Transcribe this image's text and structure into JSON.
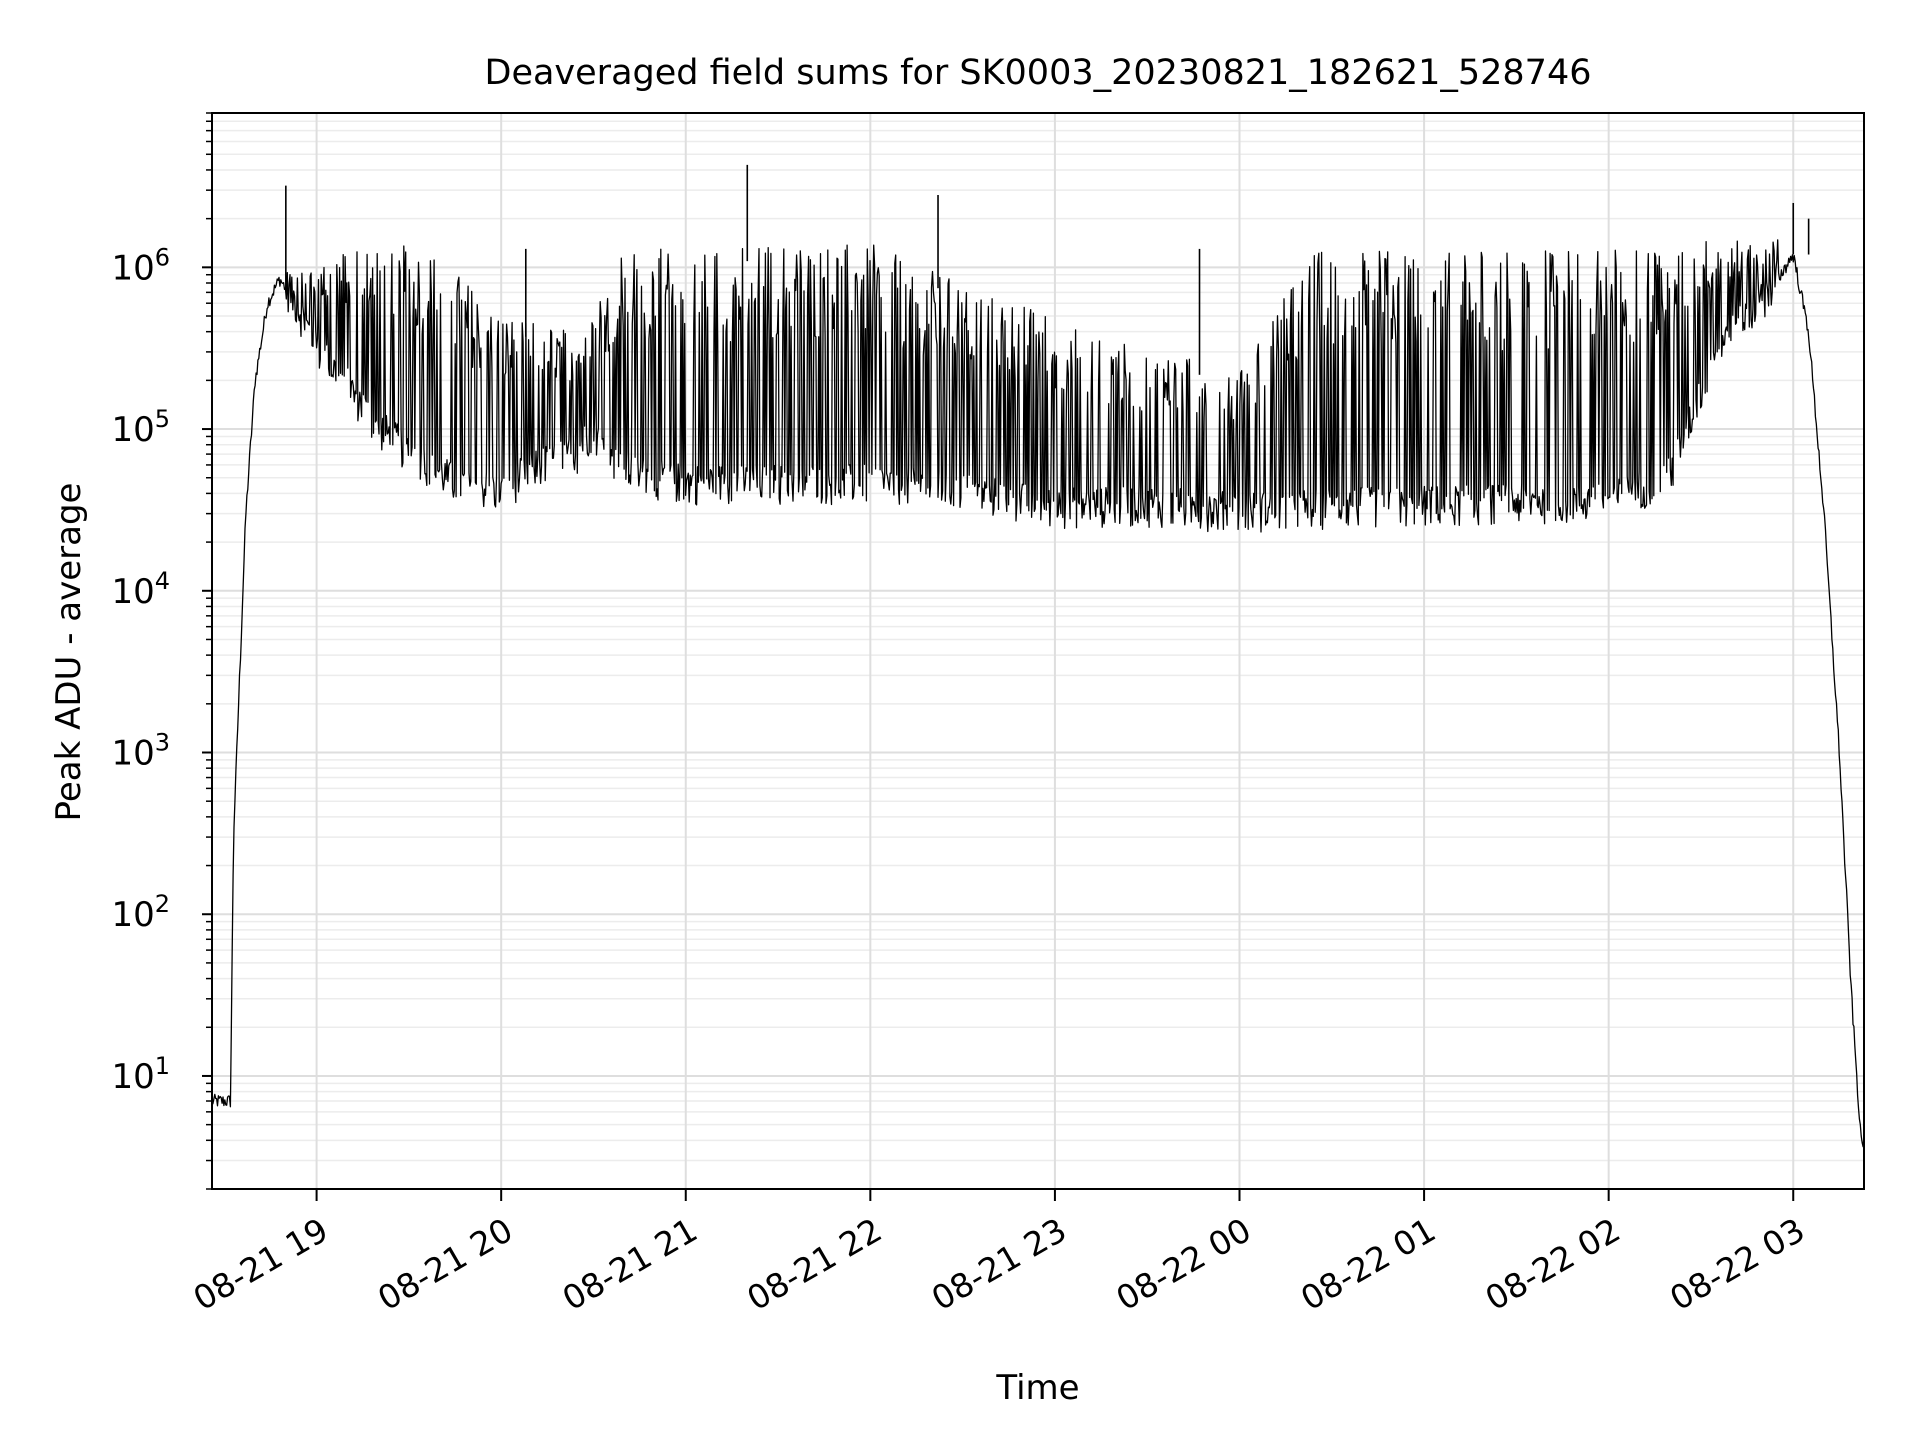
{
  "chart_data": {
    "type": "line",
    "title": "Deaveraged field sums for SK0003_20230821_182621_528746",
    "xlabel": "Time",
    "ylabel": "Peak ADU - average",
    "y_scale": "log",
    "ylim": [
      2,
      9000000
    ],
    "xlim": [
      "2023-08-21 18:26",
      "2023-08-22 03:23"
    ],
    "grid": true,
    "grid_minor": true,
    "line_color": "#000000",
    "x_ticks": [
      {
        "value": "2023-08-21 19:00",
        "label": "08-21 19"
      },
      {
        "value": "2023-08-21 20:00",
        "label": "08-21 20"
      },
      {
        "value": "2023-08-21 21:00",
        "label": "08-21 21"
      },
      {
        "value": "2023-08-21 22:00",
        "label": "08-21 22"
      },
      {
        "value": "2023-08-21 23:00",
        "label": "08-21 23"
      },
      {
        "value": "2023-08-22 00:00",
        "label": "08-22 00"
      },
      {
        "value": "2023-08-22 01:00",
        "label": "08-22 01"
      },
      {
        "value": "2023-08-22 02:00",
        "label": "08-22 02"
      },
      {
        "value": "2023-08-22 03:00",
        "label": "08-22 03"
      }
    ],
    "y_ticks": [
      {
        "value": 10,
        "base": "10",
        "exp": "1"
      },
      {
        "value": 100,
        "base": "10",
        "exp": "2"
      },
      {
        "value": 1000,
        "base": "10",
        "exp": "3"
      },
      {
        "value": 10000,
        "base": "10",
        "exp": "4"
      },
      {
        "value": 100000,
        "base": "10",
        "exp": "5"
      },
      {
        "value": 1000000,
        "base": "10",
        "exp": "6"
      }
    ],
    "baseline": [
      {
        "t": "2023-08-21 18:26",
        "v": 7
      },
      {
        "t": "2023-08-21 18:32",
        "v": 7
      },
      {
        "t": "2023-08-21 18:33",
        "v": 300
      },
      {
        "t": "2023-08-21 18:35",
        "v": 3000
      },
      {
        "t": "2023-08-21 18:37",
        "v": 30000
      },
      {
        "t": "2023-08-21 18:40",
        "v": 200000
      },
      {
        "t": "2023-08-21 18:44",
        "v": 600000
      },
      {
        "t": "2023-08-21 18:48",
        "v": 850000
      },
      {
        "t": "2023-08-21 18:53",
        "v": 600000
      },
      {
        "t": "2023-08-21 19:00",
        "v": 300000
      },
      {
        "t": "2023-08-21 19:10",
        "v": 180000
      },
      {
        "t": "2023-08-21 19:20",
        "v": 100000
      },
      {
        "t": "2023-08-21 19:30",
        "v": 70000
      },
      {
        "t": "2023-08-21 19:45",
        "v": 45000
      },
      {
        "t": "2023-08-21 20:00",
        "v": 40000
      },
      {
        "t": "2023-08-21 20:10",
        "v": 55000
      },
      {
        "t": "2023-08-21 20:25",
        "v": 70000
      },
      {
        "t": "2023-08-21 20:30",
        "v": 100000
      },
      {
        "t": "2023-08-21 20:35",
        "v": 60000
      },
      {
        "t": "2023-08-21 20:45",
        "v": 50000
      },
      {
        "t": "2023-08-21 21:00",
        "v": 45000
      },
      {
        "t": "2023-08-21 21:30",
        "v": 45000
      },
      {
        "t": "2023-08-21 22:00",
        "v": 45000
      },
      {
        "t": "2023-08-21 22:30",
        "v": 40000
      },
      {
        "t": "2023-08-21 23:00",
        "v": 32000
      },
      {
        "t": "2023-08-21 23:30",
        "v": 33000
      },
      {
        "t": "2023-08-22 00:00",
        "v": 30000
      },
      {
        "t": "2023-08-22 00:30",
        "v": 32000
      },
      {
        "t": "2023-08-22 01:00",
        "v": 33000
      },
      {
        "t": "2023-08-22 01:30",
        "v": 34000
      },
      {
        "t": "2023-08-22 02:00",
        "v": 35000
      },
      {
        "t": "2023-08-22 02:20",
        "v": 50000
      },
      {
        "t": "2023-08-22 02:35",
        "v": 300000
      },
      {
        "t": "2023-08-22 02:50",
        "v": 600000
      },
      {
        "t": "2023-08-22 03:00",
        "v": 1200000
      },
      {
        "t": "2023-08-22 03:05",
        "v": 400000
      },
      {
        "t": "2023-08-22 03:10",
        "v": 30000
      },
      {
        "t": "2023-08-22 03:15",
        "v": 1000
      },
      {
        "t": "2023-08-22 03:19",
        "v": 30
      },
      {
        "t": "2023-08-22 03:22",
        "v": 4
      }
    ],
    "envelope": [
      {
        "t": "2023-08-21 18:50",
        "v": 900000
      },
      {
        "t": "2023-08-21 19:00",
        "v": 1100000
      },
      {
        "t": "2023-08-21 19:20",
        "v": 1500000
      },
      {
        "t": "2023-08-21 19:40",
        "v": 1200000
      },
      {
        "t": "2023-08-21 20:00",
        "v": 500000
      },
      {
        "t": "2023-08-21 20:25",
        "v": 400000
      },
      {
        "t": "2023-08-21 20:40",
        "v": 1300000
      },
      {
        "t": "2023-08-21 21:00",
        "v": 1300000
      },
      {
        "t": "2023-08-21 21:30",
        "v": 1400000
      },
      {
        "t": "2023-08-21 22:00",
        "v": 1400000
      },
      {
        "t": "2023-08-21 22:30",
        "v": 800000
      },
      {
        "t": "2023-08-21 23:00",
        "v": 500000
      },
      {
        "t": "2023-08-21 23:30",
        "v": 300000
      },
      {
        "t": "2023-08-22 00:00",
        "v": 250000
      },
      {
        "t": "2023-08-22 00:25",
        "v": 1300000
      },
      {
        "t": "2023-08-22 01:00",
        "v": 1300000
      },
      {
        "t": "2023-08-22 01:30",
        "v": 1300000
      },
      {
        "t": "2023-08-22 02:00",
        "v": 1300000
      },
      {
        "t": "2023-08-22 02:30",
        "v": 1500000
      },
      {
        "t": "2023-08-22 02:55",
        "v": 1500000
      }
    ],
    "spikes": [
      {
        "t": "2023-08-21 18:50",
        "v": 3200000
      },
      {
        "t": "2023-08-21 20:08",
        "v": 1300000
      },
      {
        "t": "2023-08-21 21:20",
        "v": 4300000
      },
      {
        "t": "2023-08-21 22:22",
        "v": 2800000
      },
      {
        "t": "2023-08-21 23:47",
        "v": 1300000
      },
      {
        "t": "2023-08-22 03:00",
        "v": 2500000
      },
      {
        "t": "2023-08-22 03:05",
        "v": 2000000
      }
    ]
  }
}
